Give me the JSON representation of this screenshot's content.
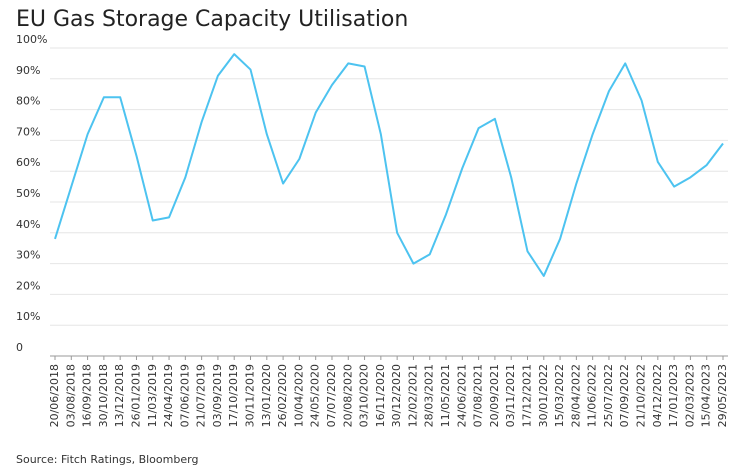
{
  "chart_data": {
    "type": "line",
    "title": "EU Gas Storage Capacity Utilisation",
    "source": "Source: Fitch Ratings, Bloomberg",
    "categories": [
      "20/06/2018",
      "03/08/2018",
      "16/09/2018",
      "30/10/2018",
      "13/12/2018",
      "26/01/2019",
      "11/03/2019",
      "24/04/2019",
      "07/06/2019",
      "21/07/2019",
      "03/09/2019",
      "17/10/2019",
      "30/11/2019",
      "13/01/2020",
      "26/02/2020",
      "10/04/2020",
      "24/05/2020",
      "07/07/2020",
      "20/08/2020",
      "03/10/2020",
      "16/11/2020",
      "30/12/2020",
      "12/02/2021",
      "28/03/2021",
      "11/05/2021",
      "24/06/2021",
      "07/08/2021",
      "20/09/2021",
      "03/11/2021",
      "17/12/2021",
      "30/01/2022",
      "15/03/2022",
      "28/04/2022",
      "11/06/2022",
      "25/07/2022",
      "07/09/2022",
      "21/10/2022",
      "04/12/2022",
      "17/01/2023",
      "02/03/2023",
      "15/04/2023",
      "29/05/2023"
    ],
    "values": [
      38,
      55,
      72,
      84,
      84,
      65,
      44,
      45,
      58,
      76,
      91,
      98,
      93,
      72,
      56,
      64,
      79,
      88,
      95,
      94,
      72,
      40,
      30,
      33,
      46,
      61,
      74,
      77,
      58,
      34,
      26,
      38,
      56,
      72,
      86,
      95,
      83,
      63,
      55,
      58,
      62,
      69
    ],
    "color": "#4dc3f0",
    "ylim": [
      0,
      100
    ],
    "yticks": [
      0,
      {
        "value": 10,
        "label": "10%"
      },
      {
        "value": 20,
        "label": "20%"
      },
      {
        "value": 30,
        "label": "30%"
      },
      {
        "value": 40,
        "label": "40%"
      },
      {
        "value": 50,
        "label": "50%"
      },
      {
        "value": 60,
        "label": "60%"
      },
      {
        "value": 70,
        "label": "70%"
      },
      {
        "value": 80,
        "label": "80%"
      },
      {
        "value": 90,
        "label": "90%"
      },
      {
        "value": 100,
        "label": "100%"
      }
    ],
    "grid": true
  }
}
